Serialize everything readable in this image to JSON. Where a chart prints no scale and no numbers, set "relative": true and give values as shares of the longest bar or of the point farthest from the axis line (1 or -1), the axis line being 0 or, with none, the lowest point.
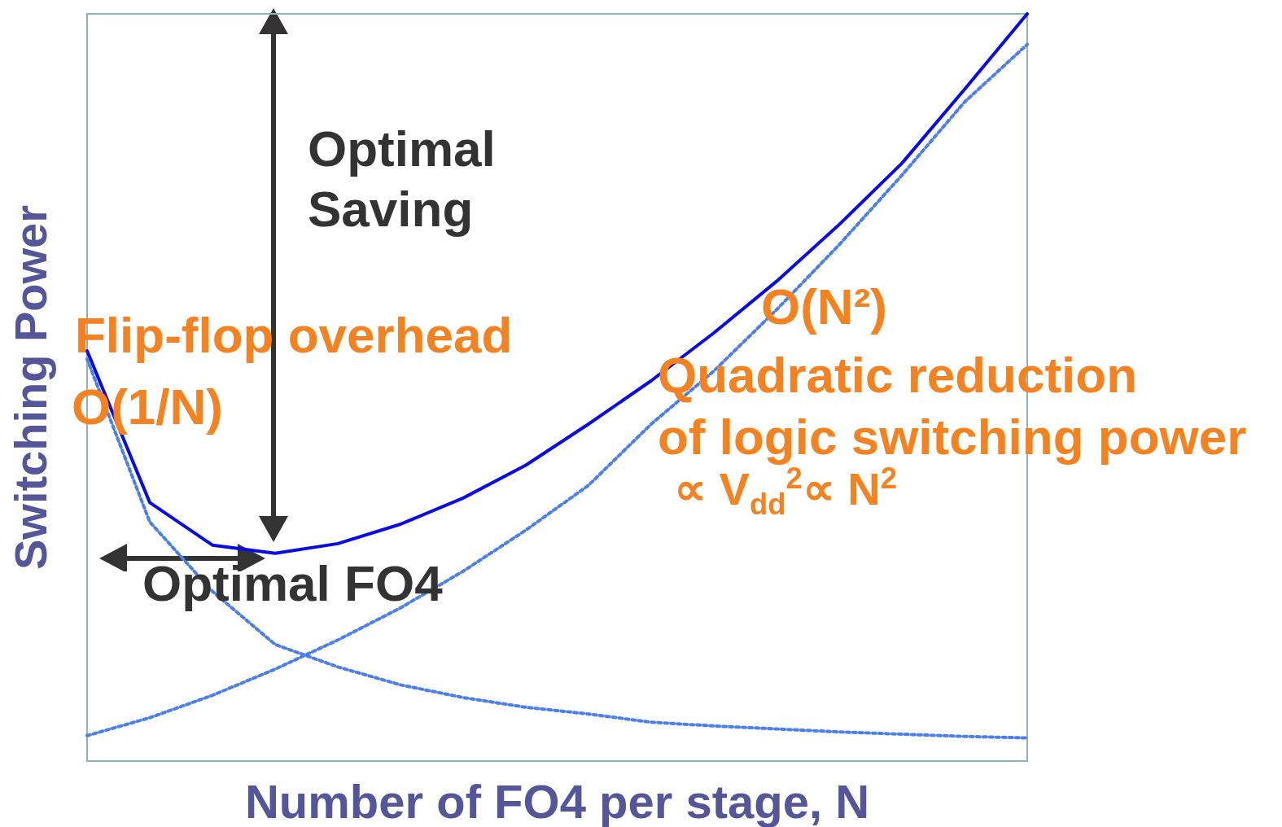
{
  "chart_data": {
    "type": "line",
    "relative": true,
    "xlabel": "Number of FO4 per stage, N",
    "ylabel": "Switching Power",
    "categories": [
      null,
      null,
      null,
      null,
      null,
      null,
      null,
      null,
      null,
      null,
      null,
      null,
      null,
      null,
      null,
      null
    ],
    "series": [
      {
        "color": "#0a0ae6",
        "line_style": "solid",
        "values": [
          0.549,
          0.346,
          0.289,
          0.278,
          0.291,
          0.317,
          0.352,
          0.396,
          0.451,
          0.509,
          0.573,
          0.642,
          0.718,
          0.8,
          0.899,
          1
        ]
      },
      {
        "color": "#4d7fe8",
        "line_style": "dotted",
        "values": [
          0.538,
          0.32,
          0.227,
          0.156,
          0.126,
          0.102,
          0.085,
          0.072,
          0.063,
          0.052,
          0.047,
          0.043,
          0.039,
          0.036,
          0.033,
          0.031
        ]
      },
      {
        "color": "#4d7fe8",
        "line_style": "dotted",
        "values": [
          0.034,
          0.058,
          0.088,
          0.123,
          0.162,
          0.205,
          0.254,
          0.309,
          0.369,
          0.451,
          0.522,
          0.604,
          0.691,
          0.784,
          0.882,
          0.959
        ]
      }
    ],
    "annotations": [
      "Optimal Saving",
      "Flip-flop overhead",
      "O(1/N)",
      "O(N²)",
      "Quadratic reduction",
      "of logic switching power",
      "∝ V$_{dd}$$^{2}$∝ N$^{2}$",
      "Optimal FO4"
    ],
    "grid": false,
    "marker": "none"
  }
}
